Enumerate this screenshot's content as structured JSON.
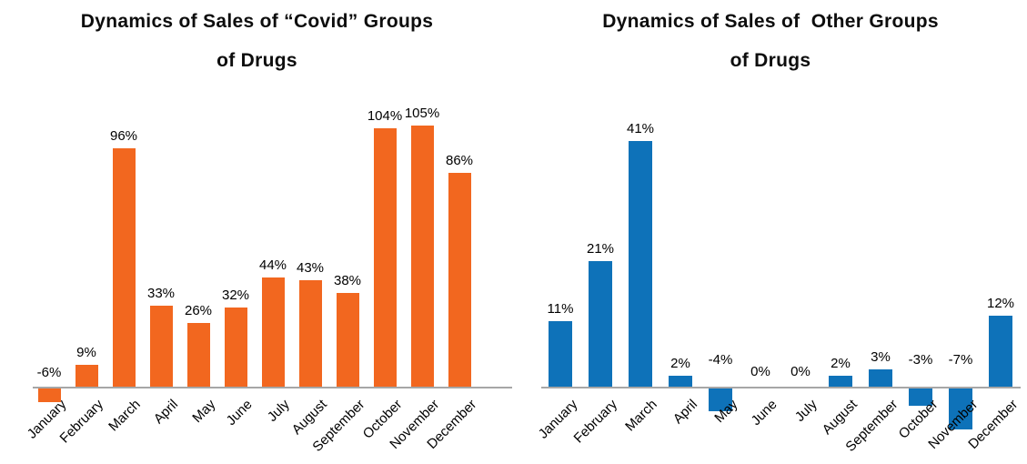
{
  "figure": {
    "background": "#ffffff",
    "axis_color": "#a6a6a6",
    "text_color": "#000000"
  },
  "chart_data": [
    {
      "type": "bar",
      "title": "Dynamics of Sales of “Covid” Groups of Drugs",
      "title_lines": [
        "Dynamics of Sales of “Covid” Groups",
        "of Drugs"
      ],
      "categories": [
        "January",
        "February",
        "March",
        "April",
        "May",
        "June",
        "July",
        "August",
        "September",
        "October",
        "November",
        "December"
      ],
      "values": [
        -6,
        9,
        96,
        33,
        26,
        32,
        44,
        43,
        38,
        104,
        105,
        86
      ],
      "data_labels": [
        "-6%",
        "9%",
        "96%",
        "33%",
        "26%",
        "32%",
        "44%",
        "43%",
        "38%",
        "104%",
        "105%",
        "86%"
      ],
      "unit": "%",
      "bar_color": "#F2671F",
      "axis_color": "#a6a6a6",
      "label_color": "#000000",
      "xlabel": "",
      "ylabel": "",
      "ylim": [
        -10,
        110
      ],
      "grid": false,
      "legend": "none",
      "y_axis_visible": false,
      "data_label_position": "outside-end-above"
    },
    {
      "type": "bar",
      "title": "Dynamics of Sales of  Other Groups of Drugs",
      "title_lines": [
        "Dynamics of Sales of  Other Groups",
        "of Drugs"
      ],
      "categories": [
        "January",
        "February",
        "March",
        "April",
        "May",
        "June",
        "July",
        "August",
        "September",
        "October",
        "November",
        "December"
      ],
      "values": [
        11,
        21,
        41,
        2,
        -4,
        0,
        0,
        2,
        3,
        -3,
        -7,
        12
      ],
      "data_labels": [
        "11%",
        "21%",
        "41%",
        "2%",
        "-4%",
        "0%",
        "0%",
        "2%",
        "3%",
        "-3%",
        "-7%",
        "12%"
      ],
      "unit": "%",
      "bar_color": "#0E72B9",
      "axis_color": "#a6a6a6",
      "label_color": "#000000",
      "xlabel": "",
      "ylabel": "",
      "ylim": [
        -10,
        45
      ],
      "grid": false,
      "legend": "none",
      "y_axis_visible": false,
      "data_label_position": "outside-end-above"
    }
  ]
}
